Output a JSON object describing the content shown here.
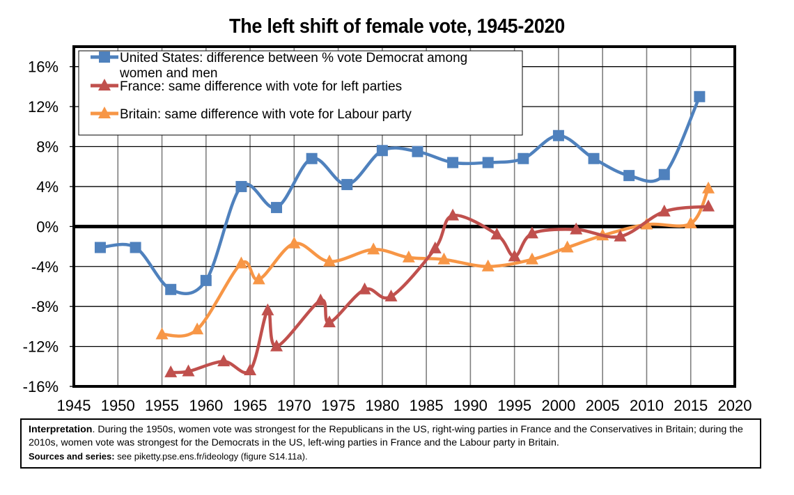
{
  "chart_data": {
    "type": "line",
    "title": "The left shift of female vote, 1945-2020",
    "xlabel": "",
    "ylabel": "",
    "xlim": [
      1945,
      2020
    ],
    "ylim": [
      -16,
      18
    ],
    "grid": true,
    "x_ticks": [
      "1945",
      "1950",
      "1955",
      "1960",
      "1965",
      "1970",
      "1975",
      "1980",
      "1985",
      "1990",
      "1995",
      "2000",
      "2005",
      "2010",
      "2015",
      "2020"
    ],
    "x_tick_values": [
      1945,
      1950,
      1955,
      1960,
      1965,
      1970,
      1975,
      1980,
      1985,
      1990,
      1995,
      2000,
      2005,
      2010,
      2015,
      2020
    ],
    "y_ticks": [
      "16%",
      "12%",
      "8%",
      "4%",
      "0%",
      "-4%",
      "-8%",
      "-12%",
      "-16%"
    ],
    "y_tick_values": [
      16,
      12,
      8,
      4,
      0,
      -4,
      -8,
      -12,
      -16
    ],
    "legend_position": "top-left",
    "series": [
      {
        "name": "United States: difference between % vote Democrat among women and men",
        "legend_lines": [
          "United States: difference between % vote Democrat among",
          "women and men"
        ],
        "color": "#4F81BD",
        "marker": "square",
        "x": [
          1948,
          1952,
          1956,
          1960,
          1964,
          1968,
          1972,
          1976,
          1980,
          1984,
          1988,
          1992,
          1996,
          2000,
          2004,
          2008,
          2012,
          2016
        ],
        "values": [
          -2.1,
          -2.1,
          -6.3,
          -5.4,
          4.0,
          1.9,
          6.8,
          4.2,
          7.6,
          7.5,
          6.4,
          6.4,
          6.8,
          9.1,
          6.8,
          5.1,
          5.2,
          13.0
        ]
      },
      {
        "name": "France: same difference with vote for left parties",
        "legend_lines": [
          "France: same difference with vote for left parties"
        ],
        "color": "#C0504D",
        "marker": "triangle",
        "x": [
          1956,
          1958,
          1962,
          1965,
          1967,
          1968,
          1973,
          1974,
          1978,
          1981,
          1986,
          1988,
          1993,
          1995,
          1997,
          2002,
          2007,
          2012,
          2017
        ],
        "values": [
          -14.6,
          -14.5,
          -13.5,
          -14.4,
          -8.4,
          -12.0,
          -7.4,
          -9.6,
          -6.3,
          -7.0,
          -2.2,
          1.1,
          -0.8,
          -3.0,
          -0.7,
          -0.3,
          -1.0,
          1.5,
          2.0
        ]
      },
      {
        "name": "Britain: same difference with vote for Labour party",
        "legend_lines": [
          "Britain: same difference with vote for Labour party"
        ],
        "color": "#F79646",
        "marker": "triangle",
        "x": [
          1955,
          1959,
          1964,
          1966,
          1970,
          1974,
          1979,
          1983,
          1987,
          1992,
          1997,
          2001,
          2005,
          2010,
          2015,
          2017
        ],
        "values": [
          -10.8,
          -10.3,
          -3.7,
          -5.3,
          -1.7,
          -3.5,
          -2.3,
          -3.1,
          -3.3,
          -4.0,
          -3.3,
          -2.1,
          -0.9,
          0.2,
          0.3,
          3.8
        ]
      }
    ]
  },
  "note": {
    "interpretation_label": "Interpretation",
    "interpretation_text": ". During the 1950s, women vote was strongest for the Republicans in the US, right-wing parties in France and the Conservatives in Britain; during the 2010s, women vote was strongest for the Democrats in the US, left-wing parties in France and the Labour party in Britain.",
    "sources_label": "Sources and series:",
    "sources_text": " see piketty.pse.ens.fr/ideology (figure S14.11a)."
  }
}
